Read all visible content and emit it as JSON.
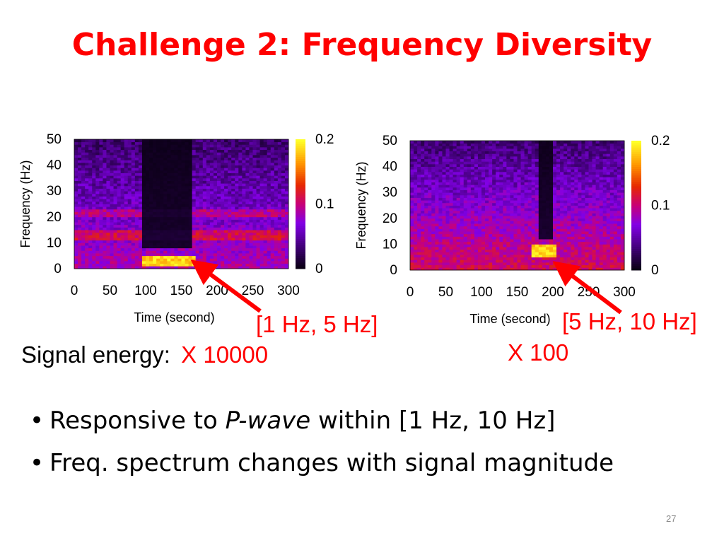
{
  "slide": {
    "title": "Challenge 2: Frequency Diversity",
    "page_number": "27"
  },
  "annotations": {
    "left_band": "[1 Hz, 5 Hz]",
    "right_band": "[5 Hz, 10 Hz]",
    "signal_energy_label": "Signal energy:",
    "left_multiplier": "X 10000",
    "right_multiplier": "X 100"
  },
  "bullets": [
    {
      "prefix": "Responsive to ",
      "emph": "P-wave",
      "suffix": " within [1 Hz, 10 Hz]"
    },
    {
      "prefix": "Freq. spectrum changes with signal magnitude",
      "emph": "",
      "suffix": ""
    }
  ],
  "colors": {
    "title": "#ff0000",
    "annotation": "#ff0000",
    "arrow": "#ff0000"
  },
  "chart_data": [
    {
      "type": "heatmap",
      "title": "",
      "xlabel": "Time (second)",
      "ylabel": "Frequency (Hz)",
      "xlim": [
        0,
        300
      ],
      "ylim": [
        0,
        50
      ],
      "xticks": [
        "0",
        "50",
        "100",
        "150",
        "200",
        "250",
        "300"
      ],
      "yticks": [
        "0",
        "10",
        "20",
        "30",
        "40",
        "50"
      ],
      "colorbar": {
        "range": [
          0,
          0.2
        ],
        "ticks": [
          "0",
          "0.1",
          "0.2"
        ]
      },
      "quiet_window": [
        95,
        165
      ],
      "hotspot": {
        "time": [
          95,
          170
        ],
        "freq": [
          1,
          5
        ],
        "value": 0.2
      }
    },
    {
      "type": "heatmap",
      "title": "",
      "xlabel": "Time (second)",
      "ylabel": "Frequency (Hz)",
      "xlim": [
        0,
        300
      ],
      "ylim": [
        0,
        50
      ],
      "xticks": [
        "0",
        "50",
        "100",
        "150",
        "200",
        "250",
        "300"
      ],
      "yticks": [
        "0",
        "10",
        "20",
        "30",
        "40",
        "50"
      ],
      "colorbar": {
        "range": [
          0,
          0.2
        ],
        "ticks": [
          "0",
          "0.1",
          "0.2"
        ]
      },
      "quiet_window": [
        180,
        200
      ],
      "hotspot": {
        "time": [
          170,
          205
        ],
        "freq": [
          5,
          10
        ],
        "value": 0.2
      }
    }
  ]
}
